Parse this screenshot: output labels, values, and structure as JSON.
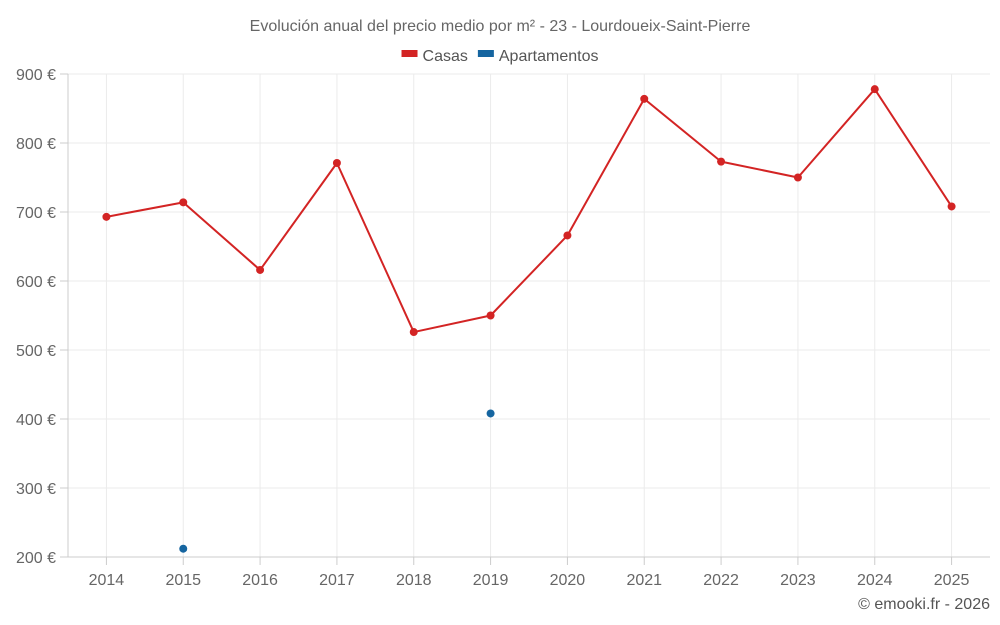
{
  "chart_data": {
    "type": "line",
    "title": "Evolución anual del precio medio por m² - 23 - Lourdoueix-Saint-Pierre",
    "categories": [
      "2014",
      "2015",
      "2016",
      "2017",
      "2018",
      "2019",
      "2020",
      "2021",
      "2022",
      "2023",
      "2024",
      "2025"
    ],
    "series": [
      {
        "name": "Casas",
        "color": "#d32424",
        "values": [
          693,
          714,
          616,
          771,
          526,
          550,
          666,
          864,
          773,
          750,
          878,
          708
        ]
      },
      {
        "name": "Apartamentos",
        "color": "#1565a0",
        "values": [
          null,
          212,
          null,
          null,
          null,
          408,
          null,
          null,
          null,
          null,
          null,
          null
        ]
      }
    ],
    "ylim": [
      200,
      900
    ],
    "yticks": [
      {
        "value": 200,
        "label": "200 €"
      },
      {
        "value": 300,
        "label": "300 €"
      },
      {
        "value": 400,
        "label": "400 €"
      },
      {
        "value": 500,
        "label": "500 €"
      },
      {
        "value": 600,
        "label": "600 €"
      },
      {
        "value": 700,
        "label": "700 €"
      },
      {
        "value": 800,
        "label": "800 €"
      },
      {
        "value": 900,
        "label": "900 €"
      }
    ],
    "grid": true,
    "legend_position": "top-center",
    "xlabel": "",
    "ylabel": ""
  },
  "credit": "© emooki.fr - 2026"
}
